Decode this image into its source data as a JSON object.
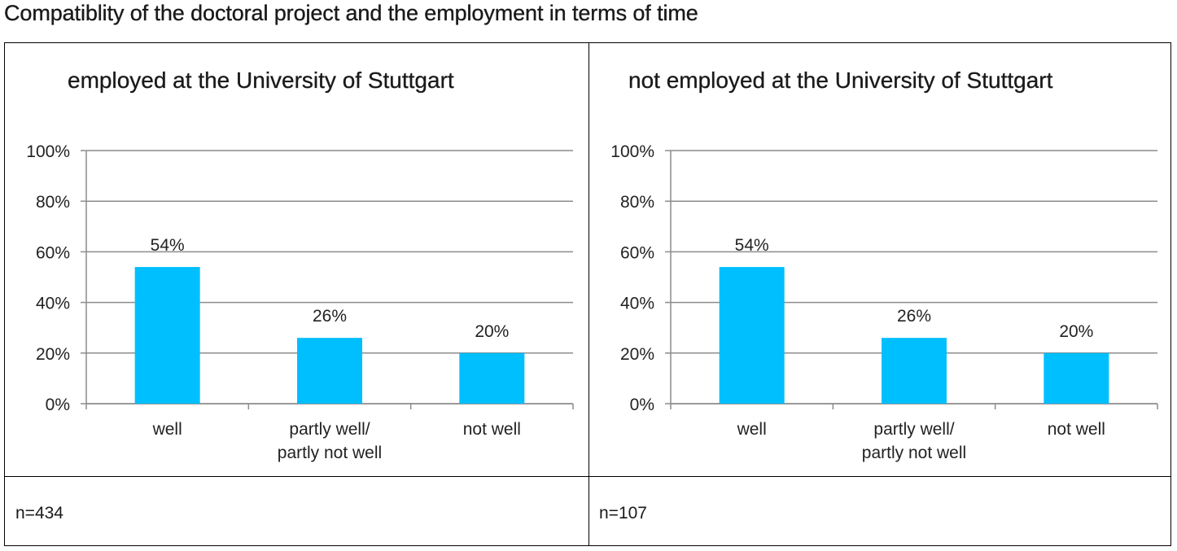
{
  "page": {
    "title": "Compatiblity of the doctoral project and the employment in terms of time"
  },
  "colors": {
    "bar": "#00BFFF",
    "grid": "#8c8c8c",
    "border": "#000000"
  },
  "chart_data": [
    {
      "type": "bar",
      "title": "employed at the University of Stuttgart",
      "categories": [
        [
          "well"
        ],
        [
          "partly well/",
          "partly not well"
        ],
        [
          "not well"
        ]
      ],
      "values": [
        54,
        26,
        20
      ],
      "value_labels": [
        "54%",
        "26%",
        "20%"
      ],
      "ylim": [
        0,
        100
      ],
      "yticks": [
        0,
        20,
        40,
        60,
        80,
        100
      ],
      "ytick_labels": [
        "0%",
        "20%",
        "40%",
        "60%",
        "80%",
        "100%"
      ],
      "grid": true,
      "n_label": "n=434"
    },
    {
      "type": "bar",
      "title": "not employed at the University of Stuttgart",
      "categories": [
        [
          "well"
        ],
        [
          "partly well/",
          "partly not well"
        ],
        [
          "not well"
        ]
      ],
      "values": [
        54,
        26,
        20
      ],
      "value_labels": [
        "54%",
        "26%",
        "20%"
      ],
      "ylim": [
        0,
        100
      ],
      "yticks": [
        0,
        20,
        40,
        60,
        80,
        100
      ],
      "ytick_labels": [
        "0%",
        "20%",
        "40%",
        "60%",
        "80%",
        "100%"
      ],
      "grid": true,
      "n_label": "n=107"
    }
  ]
}
